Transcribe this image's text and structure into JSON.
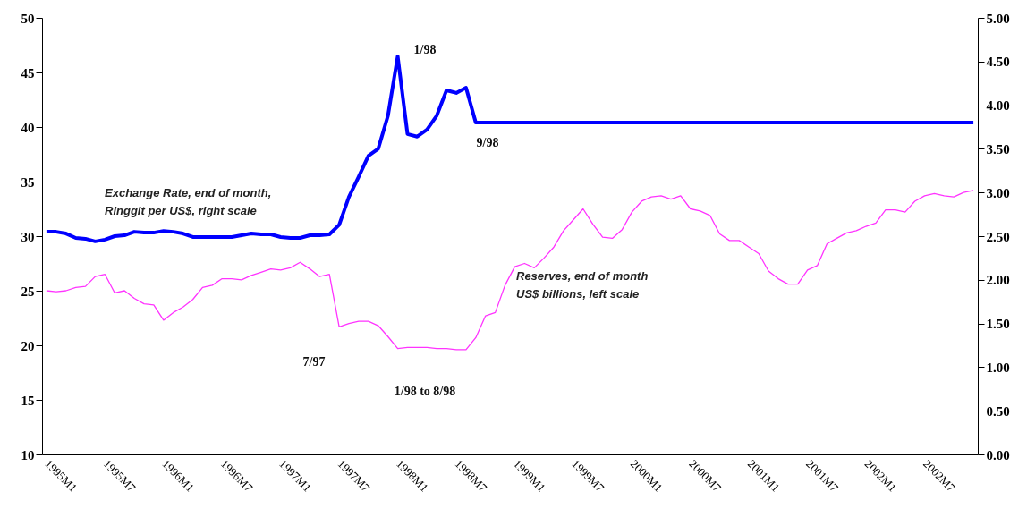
{
  "chart_data": {
    "type": "line",
    "categories": [
      "1995M1",
      null,
      null,
      null,
      null,
      null,
      "1995M7",
      null,
      null,
      null,
      null,
      null,
      "1996M1",
      null,
      null,
      null,
      null,
      null,
      "1996M7",
      null,
      null,
      null,
      null,
      null,
      "1997M1",
      null,
      null,
      null,
      null,
      null,
      "1997M7",
      null,
      null,
      null,
      null,
      null,
      "1998M1",
      null,
      null,
      null,
      null,
      null,
      "1998M7",
      null,
      null,
      null,
      null,
      null,
      "1999M1",
      null,
      null,
      null,
      null,
      null,
      "1999M7",
      null,
      null,
      null,
      null,
      null,
      "2000M1",
      null,
      null,
      null,
      null,
      null,
      "2000M7",
      null,
      null,
      null,
      null,
      null,
      "2001M1",
      null,
      null,
      null,
      null,
      null,
      "2001M7",
      null,
      null,
      null,
      null,
      null,
      "2002M1",
      null,
      null,
      null,
      null,
      null,
      "2002M7",
      null,
      null,
      null,
      null,
      null
    ],
    "series": [
      {
        "name": "Exchange Rate, end of month,\nRinggit per US$, right scale",
        "color": "#0000ff",
        "axis": "y2",
        "values": [
          2.55,
          2.55,
          2.53,
          2.48,
          2.47,
          2.44,
          2.46,
          2.5,
          2.51,
          2.55,
          2.54,
          2.54,
          2.56,
          2.55,
          2.53,
          2.49,
          2.49,
          2.49,
          2.49,
          2.49,
          2.51,
          2.53,
          2.52,
          2.52,
          2.49,
          2.48,
          2.48,
          2.51,
          2.51,
          2.52,
          2.63,
          2.95,
          3.18,
          3.42,
          3.5,
          3.88,
          4.56,
          3.67,
          3.64,
          3.72,
          3.88,
          4.17,
          4.14,
          4.2,
          3.8,
          3.8,
          3.8,
          3.8,
          3.8,
          3.8,
          3.8,
          3.8,
          3.8,
          3.8,
          3.8,
          3.8,
          3.8,
          3.8,
          3.8,
          3.8,
          3.8,
          3.8,
          3.8,
          3.8,
          3.8,
          3.8,
          3.8,
          3.8,
          3.8,
          3.8,
          3.8,
          3.8,
          3.8,
          3.8,
          3.8,
          3.8,
          3.8,
          3.8,
          3.8,
          3.8,
          3.8,
          3.8,
          3.8,
          3.8,
          3.8,
          3.8,
          3.8,
          3.8,
          3.8,
          3.8,
          3.8,
          3.8,
          3.8,
          3.8,
          3.8,
          3.8
        ]
      },
      {
        "name": "Reserves, end of month\nUS$ billions, left scale",
        "color": "#ff33ff",
        "values": [
          25.0,
          24.9,
          25.0,
          25.3,
          25.4,
          26.3,
          26.5,
          24.8,
          25.0,
          24.3,
          23.8,
          23.7,
          22.3,
          23.0,
          23.5,
          24.2,
          25.3,
          25.5,
          26.1,
          26.1,
          26.0,
          26.4,
          26.7,
          27.0,
          26.9,
          27.1,
          27.6,
          27.0,
          26.3,
          26.5,
          21.7,
          22.0,
          22.2,
          22.2,
          21.8,
          20.8,
          19.7,
          19.8,
          19.8,
          19.8,
          19.7,
          19.7,
          19.6,
          19.6,
          20.7,
          22.7,
          23.0,
          25.5,
          27.2,
          27.5,
          27.1,
          28.0,
          29.0,
          30.5,
          31.5,
          32.5,
          31.1,
          29.9,
          29.8,
          30.6,
          32.2,
          33.2,
          33.6,
          33.7,
          33.4,
          33.7,
          32.5,
          32.3,
          31.9,
          30.2,
          29.6,
          29.6,
          29.0,
          28.4,
          26.8,
          26.1,
          25.6,
          25.6,
          26.9,
          27.3,
          29.3,
          29.8,
          30.3,
          30.5,
          30.9,
          31.2,
          32.4,
          32.4,
          32.2,
          33.2,
          33.7,
          33.9,
          33.7,
          33.6,
          34.0,
          34.2
        ]
      }
    ],
    "ylim": [
      10,
      50
    ],
    "yticks": [
      10,
      15,
      20,
      25,
      30,
      35,
      40,
      45,
      50
    ],
    "y2lim": [
      0,
      5
    ],
    "y2ticks": [
      {
        "value": 0,
        "label": "0.00"
      },
      {
        "value": 0.5,
        "label": "0.50"
      },
      {
        "value": 1,
        "label": "1.00"
      },
      {
        "value": 1.5,
        "label": "1.50"
      },
      {
        "value": 2,
        "label": "2.00"
      },
      {
        "value": 2.5,
        "label": "2.50"
      },
      {
        "value": 3,
        "label": "3.00"
      },
      {
        "value": 3.5,
        "label": "3.50"
      },
      {
        "value": 4,
        "label": "4.00"
      },
      {
        "value": 4.5,
        "label": "4.50"
      },
      {
        "value": 5,
        "label": "5.00"
      }
    ],
    "annotations": [
      "1/98",
      "9/98",
      "7/97",
      "1/98 to 8/98"
    ],
    "grid": false
  }
}
